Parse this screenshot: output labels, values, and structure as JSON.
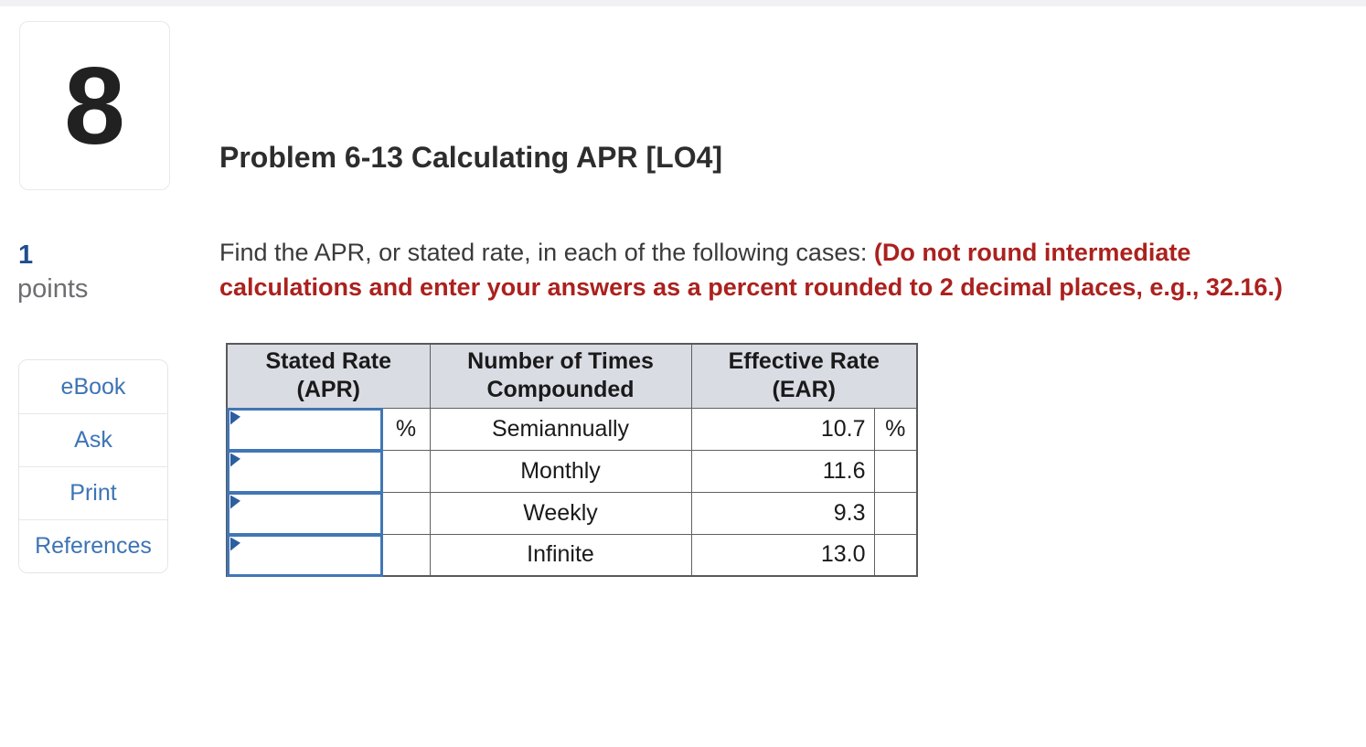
{
  "sidebar": {
    "question_number": "8",
    "points_value": "1",
    "points_label": "points",
    "tools": [
      {
        "label": "eBook"
      },
      {
        "label": "Ask"
      },
      {
        "label": "Print"
      },
      {
        "label": "References"
      }
    ]
  },
  "main": {
    "title": "Problem 6-13 Calculating APR [LO4]",
    "instructions_normal": "Find the APR, or stated rate, in each of the following cases: ",
    "instructions_warning": "(Do not round intermediate calculations and enter your answers as a percent rounded to 2 decimal places, e.g., 32.16.)"
  },
  "table": {
    "headers": [
      {
        "line1": "Stated Rate",
        "line2": "(APR)"
      },
      {
        "line1": "Number of Times",
        "line2": "Compounded"
      },
      {
        "line1": "Effective Rate",
        "line2": "(EAR)"
      }
    ],
    "rows": [
      {
        "stated_rate_input": "",
        "stated_rate_unit": "%",
        "compounded": "Semiannually",
        "ear": "10.7",
        "ear_unit": "%"
      },
      {
        "stated_rate_input": "",
        "stated_rate_unit": "",
        "compounded": "Monthly",
        "ear": "11.6",
        "ear_unit": ""
      },
      {
        "stated_rate_input": "",
        "stated_rate_unit": "",
        "compounded": "Weekly",
        "ear": "9.3",
        "ear_unit": ""
      },
      {
        "stated_rate_input": "",
        "stated_rate_unit": "",
        "compounded": "Infinite",
        "ear": "13.0",
        "ear_unit": ""
      }
    ]
  },
  "colors": {
    "link_blue": "#3d74b5",
    "points_blue": "#1d4f8f",
    "warning_red": "#ab211e",
    "table_header_bg": "#d9dce3",
    "table_border": "#58595b",
    "input_border_blue": "#4276b5",
    "marker_blue": "#2d5e9e",
    "top_bar_gray": "#f1f1f3"
  }
}
